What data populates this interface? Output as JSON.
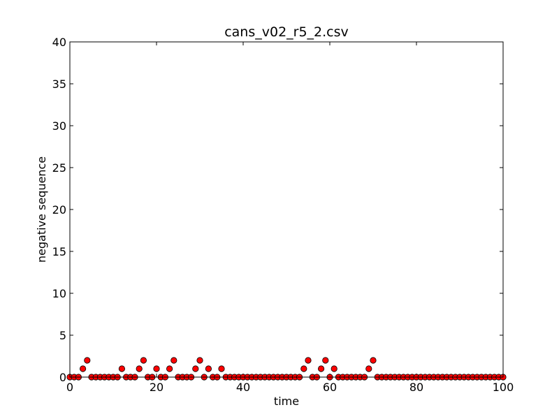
{
  "chart_data": {
    "type": "scatter",
    "title": "cans_v02_r5_2.csv",
    "xlabel": "time",
    "ylabel": "negative sequence",
    "xlim": [
      0,
      100
    ],
    "ylim": [
      0,
      40
    ],
    "xticks": [
      0,
      20,
      40,
      60,
      80,
      100
    ],
    "yticks": [
      0,
      5,
      10,
      15,
      20,
      25,
      30,
      35,
      40
    ],
    "grid": false,
    "legend": "none",
    "marker_color": "#ff0000",
    "marker_edge_color": "#000000",
    "series": [
      {
        "x": [
          0,
          1,
          2,
          3,
          4,
          5,
          6,
          7,
          8,
          9,
          10,
          11,
          12,
          13,
          14,
          15,
          16,
          17,
          18,
          19,
          20,
          21,
          22,
          23,
          24,
          25,
          26,
          27,
          28,
          29,
          30,
          31,
          32,
          33,
          34,
          35,
          36,
          37,
          38,
          39,
          40,
          41,
          42,
          43,
          44,
          45,
          46,
          47,
          48,
          49,
          50,
          51,
          52,
          53,
          54,
          55,
          56,
          57,
          58,
          59,
          60,
          61,
          62,
          63,
          64,
          65,
          66,
          67,
          68,
          69,
          70,
          71,
          72,
          73,
          74,
          75,
          76,
          77,
          78,
          79,
          80,
          81,
          82,
          83,
          84,
          85,
          86,
          87,
          88,
          89,
          90,
          91,
          92,
          93,
          94,
          95,
          96,
          97,
          98,
          99,
          100
        ],
        "y": [
          0,
          0,
          0,
          1,
          2,
          0,
          0,
          0,
          0,
          0,
          0,
          0,
          1,
          0,
          0,
          0,
          1,
          2,
          0,
          0,
          1,
          0,
          0,
          1,
          2,
          0,
          0,
          0,
          0,
          1,
          2,
          0,
          1,
          0,
          0,
          1,
          0,
          0,
          0,
          0,
          0,
          0,
          0,
          0,
          0,
          0,
          0,
          0,
          0,
          0,
          0,
          0,
          0,
          0,
          1,
          2,
          0,
          0,
          1,
          2,
          0,
          1,
          0,
          0,
          0,
          0,
          0,
          0,
          0,
          1,
          2,
          0,
          0,
          0,
          0,
          0,
          0,
          0,
          0,
          0,
          0,
          0,
          0,
          0,
          0,
          0,
          0,
          0,
          0,
          0,
          0,
          0,
          0,
          0,
          0,
          0,
          0,
          0,
          0,
          0,
          0
        ]
      }
    ]
  }
}
